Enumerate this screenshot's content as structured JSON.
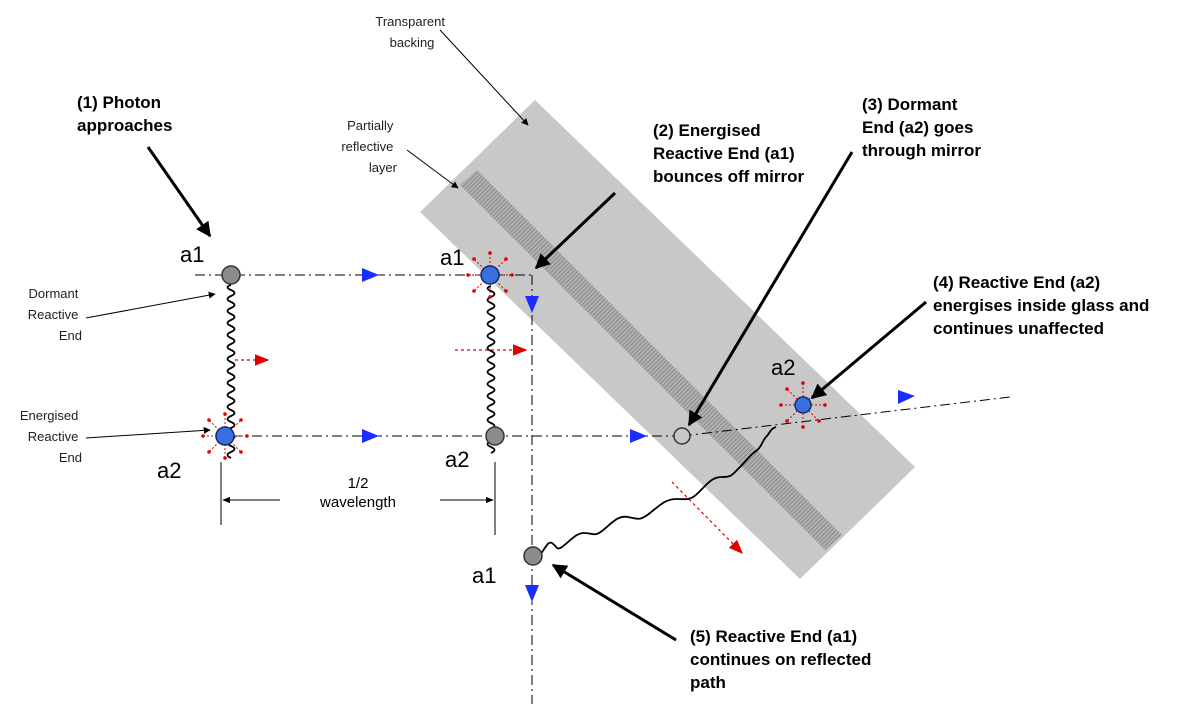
{
  "labels": {
    "transparent_backing": [
      "Transparent",
      "backing"
    ],
    "partially_reflective": [
      "Partially",
      "reflective",
      "layer"
    ],
    "dormant_reactive_end": [
      "Dormant",
      "Reactive",
      "End"
    ],
    "energised_reactive_end": [
      "Energised",
      "Reactive",
      "End"
    ],
    "step1": [
      "(1) Photon",
      "approaches"
    ],
    "step2": [
      "(2) Energised",
      "Reactive End (a1)",
      "bounces off mirror"
    ],
    "step3": [
      "(3) Dormant",
      "End (a2) goes",
      "through mirror"
    ],
    "step4": [
      "(4) Reactive End (a2)",
      "energises inside glass and",
      "continues unaffected"
    ],
    "step5": [
      "(5) Reactive End (a1)",
      "continues on reflected",
      "path"
    ],
    "half": "1/2",
    "wavelength": "wavelength",
    "a1": "a1",
    "a2": "a2"
  },
  "colors": {
    "dormant_end": "#8c8c8c",
    "energised_end": "#3a6fe0",
    "flow_arrow": "#1a2cff",
    "motion_arrow": "#e00000",
    "glass": "#c8c8c8"
  }
}
